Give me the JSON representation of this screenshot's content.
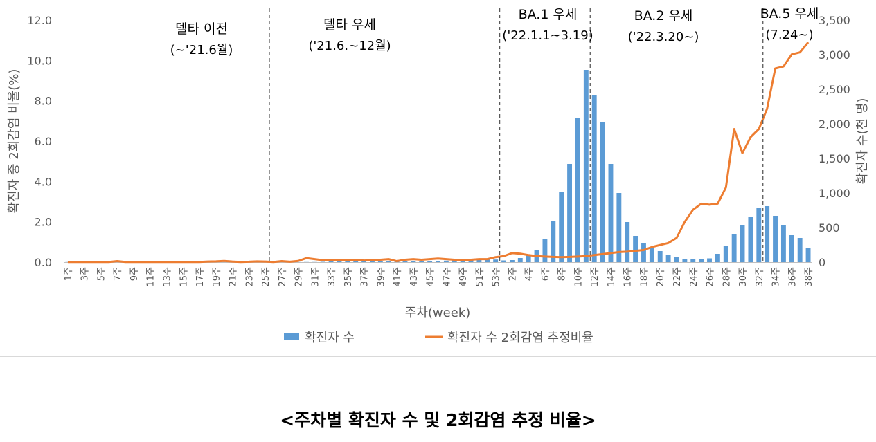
{
  "chart_data": {
    "type": "bar+line",
    "xlabel": "주차(week)",
    "ylabel_left": "확진자 중 2회감염 비율(%)",
    "ylabel_right": "확진자 수(천 명)",
    "ylim_left": [
      0,
      12
    ],
    "left_ticks": [
      "0.0",
      "2.0",
      "4.0",
      "6.0",
      "8.0",
      "10.0",
      "12.0"
    ],
    "ylim_right": [
      0,
      3500
    ],
    "right_ticks": [
      "0",
      "500",
      "1,000",
      "1,500",
      "2,000",
      "2,500",
      "3,000",
      "3,500"
    ],
    "categories": [
      "1주",
      "2주",
      "3주",
      "4주",
      "5주",
      "6주",
      "7주",
      "8주",
      "9주",
      "10주",
      "11주",
      "12주",
      "13주",
      "14주",
      "15주",
      "16주",
      "17주",
      "18주",
      "19주",
      "20주",
      "21주",
      "22주",
      "23주",
      "24주",
      "25주",
      "26주",
      "27주",
      "28주",
      "29주",
      "30주",
      "31주",
      "32주",
      "33주",
      "34주",
      "35주",
      "36주",
      "37주",
      "38주",
      "39주",
      "40주",
      "41주",
      "42주",
      "43주",
      "44주",
      "45주",
      "46주",
      "47주",
      "48주",
      "49주",
      "50주",
      "51주",
      "52주",
      "53주",
      "1주",
      "2주",
      "3주",
      "4주",
      "5주",
      "6주",
      "7주",
      "8주",
      "9주",
      "10주",
      "11주",
      "12주",
      "13주",
      "14주",
      "15주",
      "16주",
      "17주",
      "18주",
      "19주",
      "20주",
      "21주",
      "22주",
      "23주",
      "24주",
      "25주",
      "26주",
      "27주",
      "28주",
      "29주",
      "30주",
      "31주",
      "32주",
      "33주",
      "34주",
      "35주",
      "36주",
      "37주",
      "38주"
    ],
    "series": [
      {
        "name": "확진자 수",
        "type": "bar",
        "axis": "right",
        "color": "#5b9bd5",
        "values": [
          2,
          2,
          2,
          2,
          2,
          2,
          2,
          2,
          2,
          2,
          2,
          2,
          2,
          2,
          2,
          2,
          2,
          2,
          2,
          2,
          2,
          2,
          2,
          2,
          2,
          2,
          2,
          2,
          2,
          2,
          2,
          5,
          10,
          12,
          14,
          15,
          15,
          15,
          15,
          15,
          15,
          15,
          15,
          16,
          18,
          20,
          22,
          25,
          28,
          30,
          32,
          35,
          38,
          25,
          30,
          60,
          100,
          180,
          330,
          600,
          1010,
          1420,
          2090,
          2780,
          2410,
          2020,
          1420,
          1000,
          580,
          380,
          270,
          220,
          160,
          110,
          75,
          50,
          45,
          45,
          55,
          120,
          240,
          410,
          530,
          660,
          790,
          810,
          670,
          530,
          390,
          350,
          200
        ]
      },
      {
        "name": "확진자 수 2회감염 추정비율",
        "type": "line",
        "axis": "left",
        "color": "#ed7d31",
        "values": [
          0.01,
          0.01,
          0.01,
          0.01,
          0.01,
          0.01,
          0.05,
          0.01,
          0.01,
          0.01,
          0.01,
          0.01,
          0.01,
          0.01,
          0.01,
          0.01,
          0.01,
          0.03,
          0.04,
          0.06,
          0.03,
          0.01,
          0.02,
          0.04,
          0.03,
          0.01,
          0.05,
          0.02,
          0.06,
          0.2,
          0.15,
          0.1,
          0.1,
          0.12,
          0.1,
          0.12,
          0.08,
          0.1,
          0.12,
          0.15,
          0.05,
          0.12,
          0.15,
          0.12,
          0.15,
          0.18,
          0.15,
          0.12,
          0.1,
          0.12,
          0.15,
          0.15,
          0.25,
          0.3,
          0.45,
          0.42,
          0.35,
          0.3,
          0.28,
          0.26,
          0.25,
          0.26,
          0.28,
          0.3,
          0.35,
          0.4,
          0.45,
          0.5,
          0.52,
          0.56,
          0.6,
          0.75,
          0.85,
          0.95,
          1.2,
          2.0,
          2.6,
          2.9,
          2.85,
          2.9,
          3.7,
          6.6,
          5.4,
          6.2,
          6.6,
          7.6,
          9.6,
          9.7,
          10.3,
          10.4,
          10.9
        ]
      }
    ],
    "annotations": [
      {
        "line1": "델타 이전",
        "line2": "(~'21.6월)"
      },
      {
        "line1": "델타 우세",
        "line2": "('21.6.~12월)"
      },
      {
        "line1": "BA.1 우세",
        "line2": "('22.1.1~3.19)"
      },
      {
        "line1": "BA.2 우세",
        "line2": "('22.3.20~)"
      },
      {
        "line1": "BA.5 우세",
        "line2": "(7.24~)"
      }
    ],
    "divider_after_index": [
      24,
      52,
      63,
      84
    ],
    "legend": {
      "position": "bottom",
      "bar_label": "확진자 수",
      "line_label": "확진자 수 2회감염 추정비율"
    }
  },
  "caption": "<주차별 확진자 수 및 2회감염 추정 비율>"
}
